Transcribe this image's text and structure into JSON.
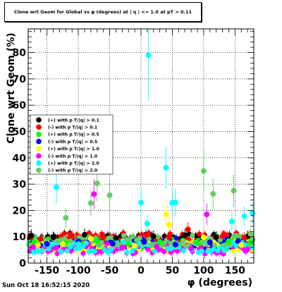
{
  "chart_data": {
    "type": "scatter",
    "title": "Clone wrt Geom for Global vs φ (degrees) at | η | <= 1.0 at pT > 0.11",
    "xlabel": "φ (degrees)",
    "ylabel": "Clone wrt Geom (%)",
    "xlim": [
      -180,
      180
    ],
    "ylim": [
      0,
      89
    ],
    "xticks": [
      -150,
      -100,
      -50,
      0,
      50,
      100,
      150
    ],
    "yticks": [
      0,
      10,
      20,
      30,
      40,
      50,
      60,
      70,
      80
    ],
    "grid": true,
    "legend_position": "left",
    "series": [
      {
        "name": "(+) with p T/|q| > 0.1",
        "color": "#000000",
        "baseline": 9.5,
        "points": [
          [
            -175,
            10.5
          ],
          [
            -140,
            9.8
          ],
          [
            -90,
            10.8
          ],
          [
            -40,
            9.5
          ],
          [
            20,
            10.2
          ],
          [
            70,
            10.6
          ],
          [
            120,
            9.9
          ],
          [
            170,
            10.1
          ]
        ]
      },
      {
        "name": "(-) with p T/|q| > 0.1",
        "color": "#ff0000",
        "baseline": 9.5,
        "points": [
          [
            -160,
            9.2
          ],
          [
            -110,
            10.4
          ],
          [
            -60,
            9.7
          ],
          [
            10,
            10.8
          ],
          [
            45,
            9.8
          ],
          [
            75,
            12.8
          ],
          [
            130,
            10.2
          ],
          [
            165,
            9.6
          ]
        ]
      },
      {
        "name": "(+) with p T/|q| > 0.5",
        "color": "#00ff00",
        "baseline": 7.5,
        "points": [
          [
            -170,
            8.1
          ],
          [
            -120,
            7.6
          ],
          [
            -70,
            8.4
          ],
          [
            -20,
            7.2
          ],
          [
            30,
            8.0
          ],
          [
            90,
            7.5
          ],
          [
            140,
            8.3
          ],
          [
            175,
            7.8
          ]
        ]
      },
      {
        "name": "(-) with p T/|q| > 0.5",
        "color": "#0000ff",
        "baseline": 7.5,
        "points": [
          [
            -150,
            7.3
          ],
          [
            -100,
            8.2
          ],
          [
            -45,
            7.4
          ],
          [
            5,
            8.1
          ],
          [
            55,
            7.0
          ],
          [
            110,
            7.9
          ],
          [
            155,
            8.4
          ]
        ]
      },
      {
        "name": "(+) with p T/|q| > 1.0",
        "color": "#ffff00",
        "baseline": 6.5,
        "points": [
          [
            -165,
            6.8
          ],
          [
            -125,
            7.2
          ],
          [
            -80,
            9.2
          ],
          [
            -10,
            6.6
          ],
          [
            40,
            18.5
          ],
          [
            45,
            14.5
          ],
          [
            100,
            9.8
          ],
          [
            160,
            6.9
          ]
        ]
      },
      {
        "name": "(-) with p T/|q| > 1.0",
        "color": "#ff00ff",
        "baseline": 5.5,
        "points": [
          [
            -172,
            6.1
          ],
          [
            -135,
            5.8
          ],
          [
            -75,
            26.2
          ],
          [
            -30,
            5.9
          ],
          [
            25,
            6.3
          ],
          [
            80,
            5.5
          ],
          [
            105,
            18.5
          ],
          [
            170,
            5.2
          ]
        ]
      },
      {
        "name": "(+) with p T/|q| > 2.0",
        "color": "#00ffff",
        "baseline": 6.0,
        "points": [
          [
            -135,
            28.8
          ],
          [
            -100,
            7.2
          ],
          [
            0,
            23.0
          ],
          [
            12,
            79.0
          ],
          [
            10,
            15.0
          ],
          [
            40,
            36.2
          ],
          [
            50,
            22.9
          ],
          [
            55,
            23.0
          ],
          [
            145,
            15.8
          ],
          [
            165,
            17.8
          ],
          [
            178,
            19.0
          ]
        ]
      },
      {
        "name": "(-) with p T/|q| > 2.0",
        "color": "#66cc66",
        "baseline": 8.5,
        "points": [
          [
            -120,
            17.2
          ],
          [
            -80,
            22.8
          ],
          [
            -70,
            30.3
          ],
          [
            -50,
            25.8
          ],
          [
            100,
            35.0
          ],
          [
            115,
            26.3
          ],
          [
            148,
            27.5
          ],
          [
            175,
            11.0
          ]
        ]
      }
    ]
  },
  "footer": {
    "timestamp": "Sun Oct 18 16:52:15 2020"
  }
}
